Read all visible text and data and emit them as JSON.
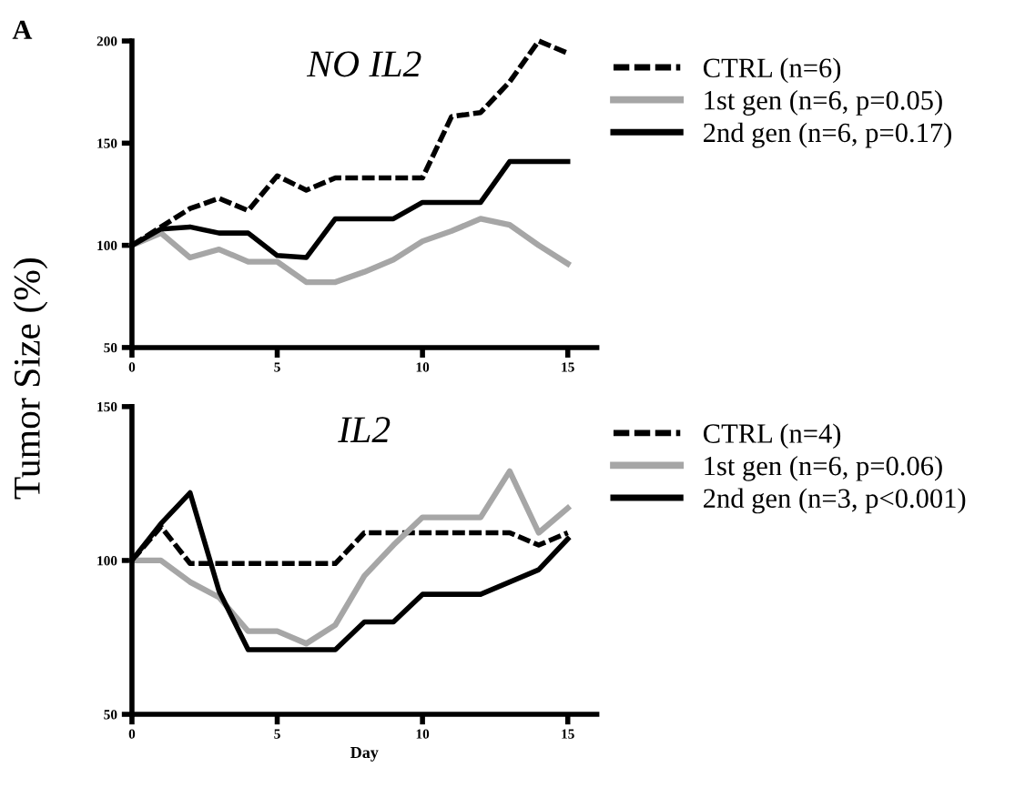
{
  "chart_data": [
    {
      "type": "line",
      "title": "NO IL2",
      "ylabel": "Tumor Size (%)",
      "annotations": [
        "A"
      ],
      "x": [
        0,
        1,
        2,
        3,
        4,
        5,
        6,
        7,
        8,
        9,
        10,
        11,
        12,
        13,
        14,
        15
      ],
      "xlim": [
        0,
        16
      ],
      "xticks": [
        0,
        5,
        10,
        15
      ],
      "ylim": [
        50,
        200
      ],
      "yticks": [
        50,
        100,
        150,
        200
      ],
      "grid": false,
      "legend": "right",
      "marker": "none",
      "series": [
        {
          "name": "CTRL (n=6)",
          "color": "#000000",
          "line_style": "dashed",
          "values": [
            100,
            109,
            118,
            123,
            117,
            134,
            127,
            133,
            133,
            133,
            133,
            163,
            165,
            180,
            200,
            194
          ]
        },
        {
          "name": "1st gen (n=6, p=0.05)",
          "color": "#a6a6a6",
          "line_style": "solid",
          "values": [
            100,
            106,
            94,
            98,
            92,
            92,
            82,
            82,
            87,
            93,
            102,
            107,
            113,
            110,
            100,
            91
          ]
        },
        {
          "name": "2nd gen (n=6, p=0.17)",
          "color": "#000000",
          "line_style": "solid",
          "values": [
            100,
            108,
            109,
            106,
            106,
            95,
            94,
            113,
            113,
            113,
            121,
            121,
            121,
            141,
            141,
            141
          ]
        }
      ]
    },
    {
      "type": "line",
      "title": "IL2",
      "xlabel": "Day",
      "x": [
        0,
        1,
        2,
        3,
        4,
        5,
        6,
        7,
        8,
        9,
        10,
        11,
        12,
        13,
        14,
        15
      ],
      "xlim": [
        0,
        16
      ],
      "xticks": [
        0,
        5,
        10,
        15
      ],
      "ylim": [
        50,
        150
      ],
      "yticks": [
        50,
        100,
        150
      ],
      "grid": false,
      "legend": "right",
      "marker": "none",
      "series": [
        {
          "name": "CTRL (n=4)",
          "color": "#000000",
          "line_style": "dashed",
          "values": [
            100,
            111,
            99,
            99,
            99,
            99,
            99,
            99,
            109,
            109,
            109,
            109,
            109,
            109,
            105,
            109
          ]
        },
        {
          "name": "1st gen (n=6, p=0.06)",
          "color": "#a6a6a6",
          "line_style": "solid",
          "values": [
            100,
            100,
            93,
            88,
            77,
            77,
            73,
            79,
            95,
            105,
            114,
            114,
            114,
            129,
            109,
            117
          ]
        },
        {
          "name": "2nd gen (n=3, p<0.001)",
          "color": "#000000",
          "line_style": "solid",
          "values": [
            100,
            112,
            122,
            90,
            71,
            71,
            71,
            71,
            80,
            80,
            89,
            89,
            89,
            93,
            97,
            107
          ]
        }
      ]
    }
  ]
}
